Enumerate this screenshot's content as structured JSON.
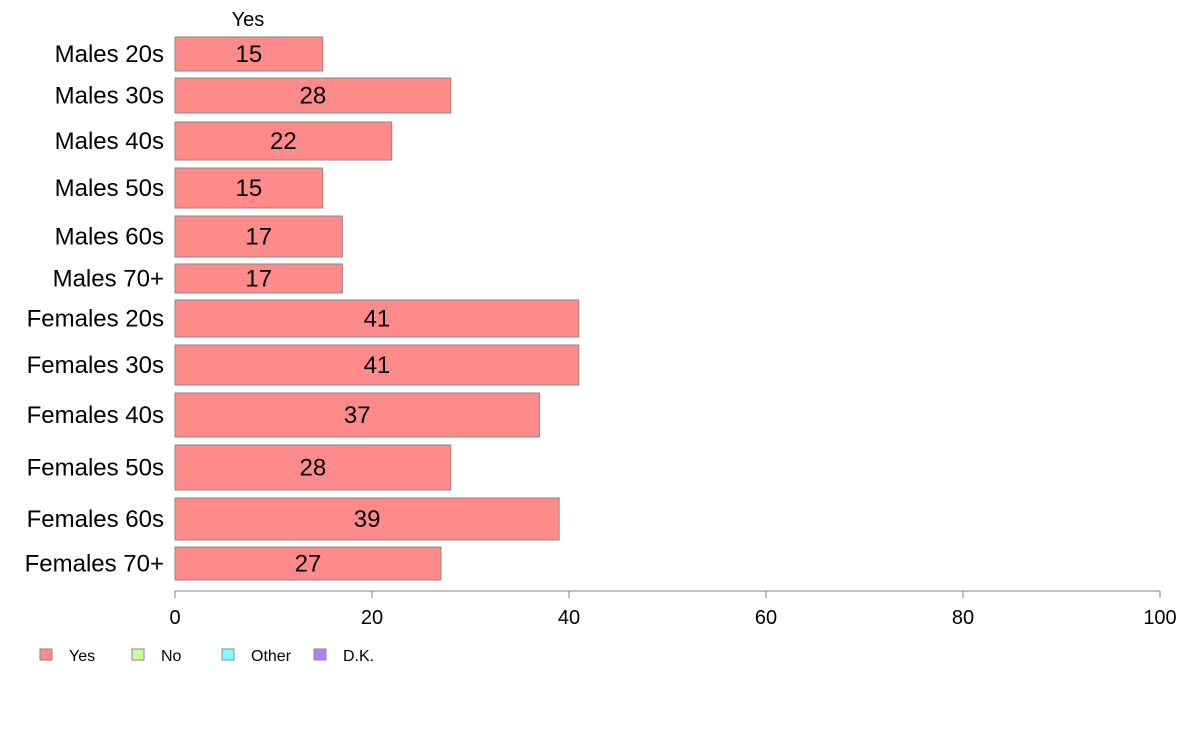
{
  "chart_data": {
    "type": "bar",
    "orientation": "horizontal",
    "stacked": true,
    "column_header": "Yes",
    "categories": [
      "Males 20s",
      "Males 30s",
      "Males 40s",
      "Males 50s",
      "Males 60s",
      "Males 70+",
      "Females 20s",
      "Females 30s",
      "Females 40s",
      "Females 50s",
      "Females 60s",
      "Females 70+"
    ],
    "series": [
      {
        "name": "Yes",
        "color": "#ff8a8a",
        "values": [
          15,
          28,
          22,
          15,
          17,
          17,
          41,
          41,
          37,
          28,
          39,
          27
        ]
      }
    ],
    "legend": [
      {
        "name": "Yes",
        "color": "#ff8a8a"
      },
      {
        "name": "No",
        "color": "#ccff99"
      },
      {
        "name": "Other",
        "color": "#80ffff"
      },
      {
        "name": "D.K.",
        "color": "#b380ff"
      }
    ],
    "legend_position": "bottom-left",
    "xlim": [
      0,
      100
    ],
    "xticks": [
      0,
      20,
      40,
      60,
      80,
      100
    ],
    "grid": false
  }
}
